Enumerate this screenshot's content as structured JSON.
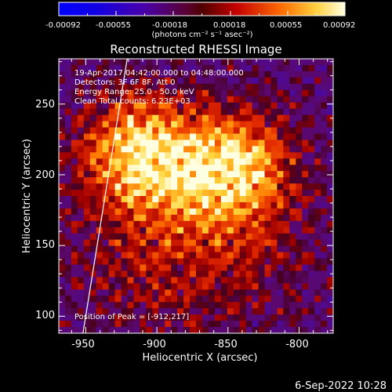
{
  "colorbar": {
    "ticks": [
      "-0.00092",
      "-0.00055",
      "-0.00018",
      "0.00018",
      "0.00055",
      "0.00092"
    ],
    "units_label": "(photons cm⁻² s⁻¹ asec⁻²)"
  },
  "chart_data": {
    "type": "heatmap",
    "title": "Reconstructed RHESSI Image",
    "xlabel": "Heliocentric X (arcsec)",
    "ylabel": "Heliocentric Y (arcsec)",
    "xlim": [
      -969,
      -776
    ],
    "ylim": [
      88,
      282
    ],
    "x_ticks": [
      "-950",
      "-900",
      "-850",
      "-800"
    ],
    "y_ticks": [
      "100",
      "150",
      "200",
      "250"
    ],
    "value_range": [
      -0.00092,
      0.00092
    ],
    "sources": [
      {
        "x": -912,
        "y": 217,
        "peak": 1.0
      },
      {
        "x": -845,
        "y": 205,
        "peak": 0.92
      }
    ],
    "limb_line": {
      "x": [
        -920,
        -952
      ],
      "y": [
        282,
        88
      ]
    },
    "info_lines": [
      "19-Apr-2017 04:42:00.000 to 04:48:00.000",
      "Detectors: 3F 6F 8F, Att 0",
      "Energy Range: 25.0 - 50.0 keV",
      "Clean    Total counts: 6.23E+03"
    ],
    "peak_label": "Position of Peak = [-912,217]"
  },
  "footer": {
    "date": "6-Sep-2022 10:28"
  }
}
